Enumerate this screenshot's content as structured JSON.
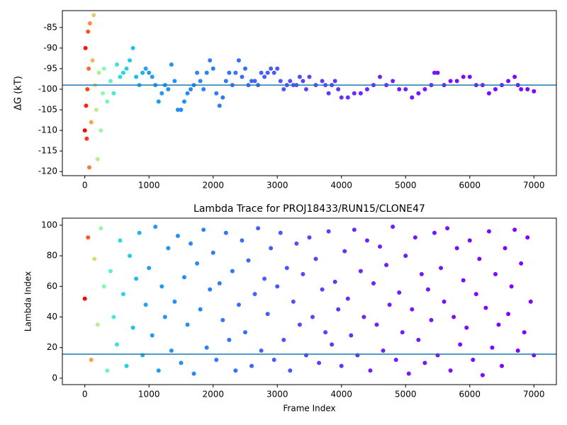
{
  "chart_data": [
    {
      "type": "scatter",
      "ylabel": "ΔG (kT)",
      "x": [
        0,
        10,
        20,
        30,
        40,
        50,
        60,
        70,
        80,
        100,
        120,
        140,
        160,
        180,
        200,
        220,
        250,
        280,
        300,
        350,
        400,
        450,
        500,
        550,
        600,
        650,
        700,
        750,
        800,
        850,
        900,
        950,
        1000,
        1050,
        1100,
        1150,
        1200,
        1250,
        1300,
        1350,
        1400,
        1450,
        1500,
        1550,
        1600,
        1650,
        1700,
        1750,
        1800,
        1850,
        1900,
        1950,
        2000,
        2050,
        2100,
        2150,
        2200,
        2250,
        2300,
        2350,
        2400,
        2450,
        2500,
        2550,
        2600,
        2650,
        2700,
        2750,
        2800,
        2850,
        2900,
        2950,
        3000,
        3050,
        3100,
        3150,
        3200,
        3250,
        3300,
        3350,
        3400,
        3450,
        3500,
        3600,
        3700,
        3750,
        3800,
        3850,
        3900,
        3950,
        4000,
        4100,
        4200,
        4300,
        4400,
        4500,
        4600,
        4700,
        4800,
        4900,
        5000,
        5100,
        5200,
        5300,
        5400,
        5450,
        5500,
        5600,
        5700,
        5800,
        5900,
        6000,
        6100,
        6200,
        6300,
        6400,
        6500,
        6600,
        6700,
        6750,
        6800,
        6900,
        7000
      ],
      "values": [
        -110,
        -90,
        -104,
        -112,
        -100,
        -86,
        -95,
        -119,
        -84,
        -108,
        -93,
        -82,
        -99,
        -105,
        -117,
        -96,
        -110,
        -101,
        -95,
        -103,
        -98,
        -101,
        -94,
        -97,
        -96,
        -95,
        -93,
        -90,
        -97,
        -99,
        -96,
        -95,
        -96,
        -97,
        -99,
        -103,
        -101,
        -99,
        -100,
        -94,
        -98,
        -105,
        -105,
        -103,
        -101,
        -100,
        -99,
        -96,
        -98,
        -100,
        -96,
        -93,
        -95,
        -101,
        -104,
        -102,
        -98,
        -96,
        -99,
        -96,
        -93,
        -97,
        -95,
        -99,
        -98,
        -98,
        -99,
        -96,
        -97,
        -96,
        -95,
        -96,
        -95,
        -98,
        -100,
        -99,
        -98,
        -99,
        -99,
        -97,
        -98,
        -100,
        -97,
        -99,
        -98,
        -99,
        -101,
        -99,
        -98,
        -100,
        -102,
        -102,
        -101,
        -101,
        -100,
        -99,
        -97,
        -99,
        -98,
        -100,
        -100,
        -102,
        -101,
        -100,
        -99,
        -96,
        -96,
        -99,
        -98,
        -98,
        -97,
        -97,
        -99,
        -99,
        -101,
        -100,
        -99,
        -98,
        -97,
        -99,
        -100,
        -100,
        -100.5
      ],
      "xlim": [
        -350,
        7350
      ],
      "ylim": [
        -121,
        -80.9
      ],
      "xticks": [
        0,
        1000,
        2000,
        3000,
        4000,
        5000,
        6000,
        7000
      ],
      "yticks": [
        -120,
        -115,
        -110,
        -105,
        -100,
        -95,
        -90,
        -85
      ],
      "hline": -99,
      "hline_color": "#1f77b4",
      "color_stops": [
        {
          "value": 0,
          "color": "#ff0000"
        },
        {
          "value": 80,
          "color": "#ff8a46"
        },
        {
          "value": 160,
          "color": "#d4e67c"
        },
        {
          "value": 300,
          "color": "#80ffb4"
        },
        {
          "value": 550,
          "color": "#2adce0"
        },
        {
          "value": 1000,
          "color": "#1e9ef0"
        },
        {
          "value": 2000,
          "color": "#2c7ef7"
        },
        {
          "value": 3000,
          "color": "#4a58f9"
        },
        {
          "value": 4500,
          "color": "#7020fd"
        },
        {
          "value": 7000,
          "color": "#8000ff"
        }
      ]
    },
    {
      "type": "scatter",
      "title": "Lambda Trace for PROJ18433/RUN15/CLONE47",
      "xlabel": "Frame Index",
      "ylabel": "Lambda Index",
      "x": [
        0,
        50,
        100,
        150,
        200,
        250,
        300,
        350,
        400,
        450,
        500,
        550,
        600,
        650,
        700,
        750,
        800,
        850,
        900,
        950,
        1000,
        1050,
        1100,
        1150,
        1200,
        1250,
        1300,
        1350,
        1400,
        1450,
        1500,
        1550,
        1600,
        1650,
        1700,
        1750,
        1800,
        1850,
        1900,
        1950,
        2000,
        2050,
        2100,
        2150,
        2200,
        2250,
        2300,
        2350,
        2400,
        2450,
        2500,
        2550,
        2600,
        2650,
        2700,
        2750,
        2800,
        2850,
        2900,
        2950,
        3000,
        3050,
        3100,
        3150,
        3200,
        3250,
        3300,
        3350,
        3400,
        3450,
        3500,
        3550,
        3600,
        3650,
        3700,
        3750,
        3800,
        3850,
        3900,
        3950,
        4000,
        4050,
        4100,
        4150,
        4200,
        4250,
        4300,
        4350,
        4400,
        4450,
        4500,
        4550,
        4600,
        4650,
        4700,
        4750,
        4800,
        4850,
        4900,
        4950,
        5000,
        5050,
        5100,
        5150,
        5200,
        5250,
        5300,
        5350,
        5400,
        5450,
        5500,
        5550,
        5600,
        5650,
        5700,
        5750,
        5800,
        5850,
        5900,
        5950,
        6000,
        6050,
        6100,
        6150,
        6200,
        6250,
        6300,
        6350,
        6400,
        6450,
        6500,
        6550,
        6600,
        6650,
        6700,
        6750,
        6800,
        6850,
        6900,
        6950,
        7000
      ],
      "values": [
        52,
        92,
        12,
        78,
        35,
        98,
        60,
        5,
        70,
        40,
        22,
        90,
        55,
        8,
        80,
        33,
        65,
        95,
        15,
        48,
        72,
        28,
        99,
        5,
        60,
        40,
        85,
        18,
        50,
        93,
        10,
        66,
        35,
        88,
        3,
        75,
        45,
        97,
        20,
        58,
        82,
        12,
        62,
        38,
        95,
        25,
        70,
        5,
        48,
        90,
        30,
        77,
        8,
        55,
        98,
        18,
        65,
        42,
        85,
        12,
        60,
        95,
        25,
        72,
        5,
        50,
        88,
        35,
        68,
        15,
        92,
        40,
        78,
        10,
        58,
        30,
        96,
        22,
        63,
        45,
        8,
        83,
        52,
        28,
        97,
        15,
        70,
        40,
        90,
        5,
        62,
        35,
        86,
        18,
        74,
        48,
        99,
        12,
        56,
        30,
        80,
        3,
        45,
        92,
        25,
        68,
        10,
        58,
        38,
        95,
        15,
        72,
        50,
        98,
        5,
        40,
        85,
        22,
        64,
        33,
        90,
        12,
        55,
        78,
        2,
        46,
        96,
        20,
        68,
        35,
        8,
        85,
        42,
        60,
        97,
        18,
        75,
        30,
        92,
        50,
        15
      ],
      "xlim": [
        -350,
        7350
      ],
      "ylim": [
        -4.2,
        104.6
      ],
      "xticks": [
        0,
        1000,
        2000,
        3000,
        4000,
        5000,
        6000,
        7000
      ],
      "yticks": [
        0,
        20,
        40,
        60,
        80,
        100
      ],
      "hline": 15.7,
      "hline_color": "#1f77b4",
      "color_stops": [
        {
          "value": 0,
          "color": "#ff0000"
        },
        {
          "value": 80,
          "color": "#ff8a46"
        },
        {
          "value": 160,
          "color": "#d4e67c"
        },
        {
          "value": 300,
          "color": "#80ffb4"
        },
        {
          "value": 550,
          "color": "#2adce0"
        },
        {
          "value": 1000,
          "color": "#1e9ef0"
        },
        {
          "value": 2000,
          "color": "#2c7ef7"
        },
        {
          "value": 3000,
          "color": "#4a58f9"
        },
        {
          "value": 4500,
          "color": "#7020fd"
        },
        {
          "value": 7000,
          "color": "#8000ff"
        }
      ]
    }
  ]
}
